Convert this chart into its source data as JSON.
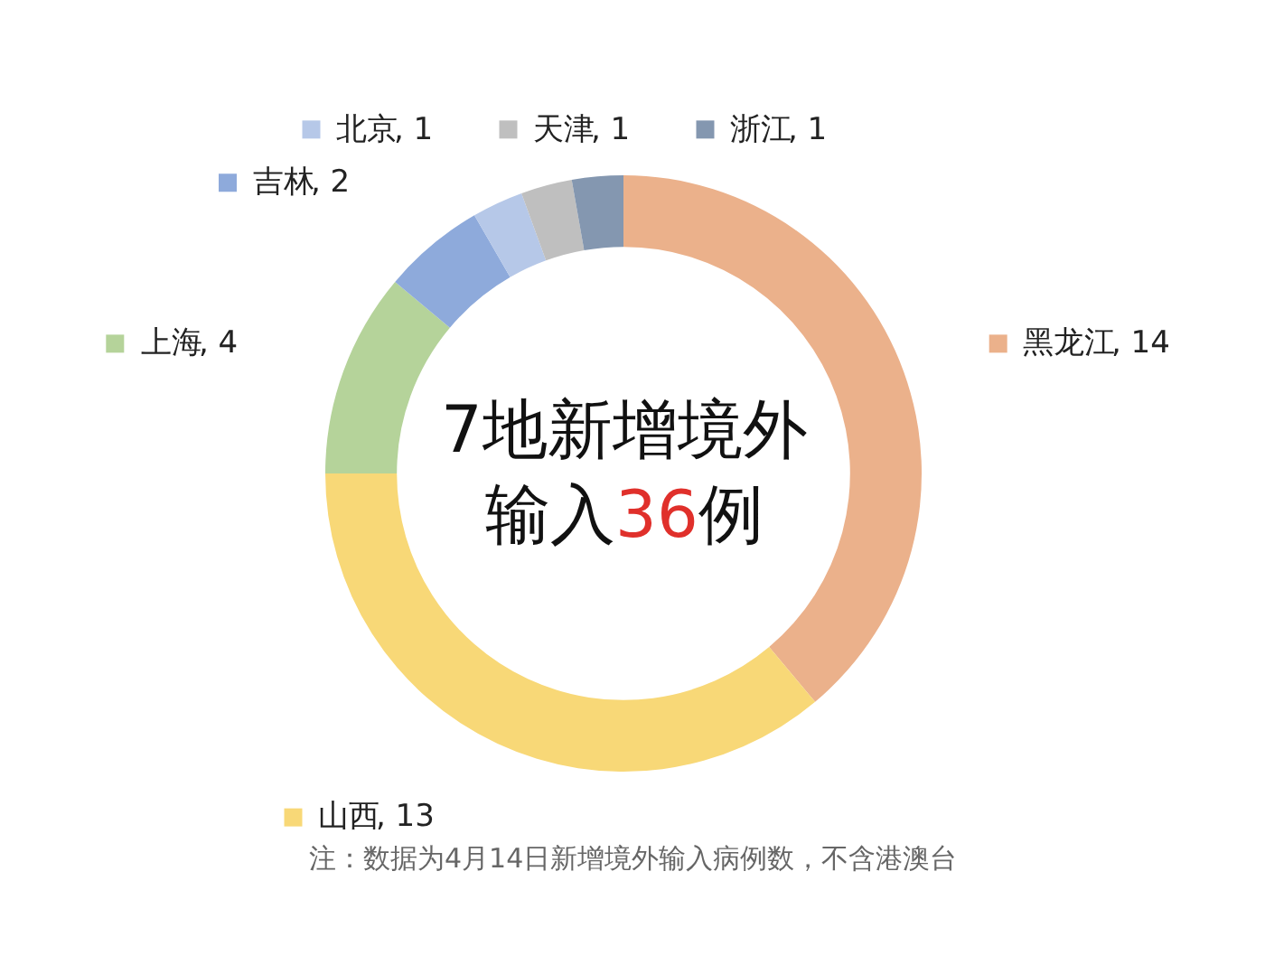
{
  "chart_data": {
    "type": "donut",
    "title": "7地新增境外输入36例",
    "categories": [
      "黑龙江",
      "山西",
      "上海",
      "吉林",
      "北京",
      "天津",
      "浙江"
    ],
    "values": [
      14,
      13,
      4,
      2,
      1,
      1,
      1
    ],
    "value_labels": [
      ", 14",
      ", 13",
      ", 4",
      ", 2",
      ", 1",
      ", 1",
      ", 1"
    ],
    "colors": [
      "#ebb18b",
      "#f8d877",
      "#b5d39a",
      "#8eaadb",
      "#b6c8e8",
      "#bfbfbf",
      "#8497b0"
    ],
    "legend": "top left",
    "annotations": [
      "注：数据为4月14日新增境外输入病例数，不含港澳台"
    ]
  }
}
